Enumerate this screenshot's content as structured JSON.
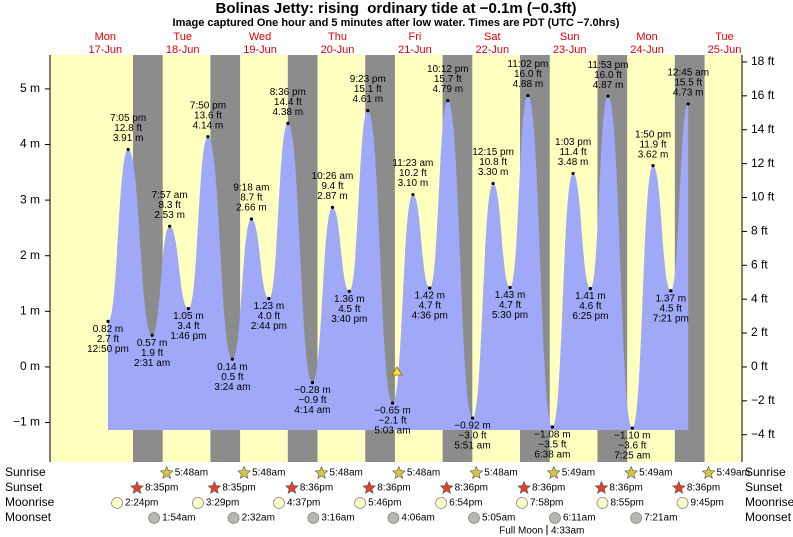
{
  "chart_data": {
    "type": "area",
    "title": "Bolinas Jetty: rising  ordinary tide at −0.1m (−0.3ft)",
    "subtitle": "Image captured One hour and 5 minutes after low water. Times are PDT (UTC −7.0hrs)",
    "categories": [
      "Mon",
      "Tue",
      "Wed",
      "Thu",
      "Fri",
      "Sat",
      "Sun",
      "Mon",
      "Tue"
    ],
    "dates": [
      "17-Jun",
      "18-Jun",
      "19-Jun",
      "20-Jun",
      "21-Jun",
      "22-Jun",
      "23-Jun",
      "24-Jun",
      "25-Jun"
    ],
    "date_color": "#e00000",
    "day_color": "#ffffc0",
    "night_color": "#8c8c8c",
    "x": [
      "12:50 pm",
      "7:05 pm",
      "2:31 am",
      "7:57 am",
      "1:46 pm",
      "7:50 pm",
      "3:24 am",
      "9:18 am",
      "2:44 pm",
      "8:36 pm",
      "4:14 am",
      "10:26 am",
      "3:40 pm",
      "9:23 pm",
      "5:03 am",
      "11:23 am",
      "4:36 pm",
      "10:12 pm",
      "5:51 am",
      "12:15 pm",
      "5:30 pm",
      "11:02 pm",
      "6:38 am",
      "1:03 pm",
      "6:25 pm",
      "11:53 pm",
      "7:25 am",
      "1:50 pm",
      "7:21 pm",
      "12:45 am"
    ],
    "series": [
      {
        "color": "#a0a8f8",
        "values": [
          0.82,
          3.91,
          0.57,
          2.53,
          1.05,
          4.14,
          0.14,
          2.66,
          1.23,
          4.38,
          -0.28,
          2.87,
          1.36,
          4.61,
          -0.65,
          3.1,
          1.42,
          4.79,
          -0.92,
          3.3,
          1.43,
          4.88,
          -1.08,
          3.48,
          1.41,
          4.87,
          -1.1,
          3.62,
          1.37,
          4.73
        ],
        "value_labels": [
          "0.82 m",
          "3.91 m",
          "0.57 m",
          "2.53 m",
          "1.05 m",
          "4.14 m",
          "0.14 m",
          "2.66 m",
          "1.23 m",
          "4.38 m",
          "−0.28 m",
          "2.87 m",
          "1.36 m",
          "4.61 m",
          "−0.65 m",
          "3.10 m",
          "1.42 m",
          "4.79 m",
          "−0.92 m",
          "3.30 m",
          "1.43 m",
          "4.88 m",
          "−1.08 m",
          "3.48 m",
          "1.41 m",
          "4.87 m",
          "−1.10 m",
          "3.62 m",
          "1.37 m",
          "4.73 m"
        ]
      },
      {
        "axis": "y2",
        "values": [
          2.7,
          12.8,
          1.9,
          8.3,
          3.4,
          13.6,
          0.5,
          8.7,
          4.0,
          14.4,
          -0.9,
          9.4,
          4.5,
          15.1,
          -2.1,
          10.2,
          4.7,
          15.7,
          -3.0,
          10.8,
          4.7,
          16.0,
          -3.5,
          11.4,
          4.6,
          16.0,
          -3.6,
          11.9,
          4.5,
          15.5
        ],
        "value_labels": [
          "2.7 ft",
          "12.8 ft",
          "1.9 ft",
          "8.3 ft",
          "3.4 ft",
          "13.6 ft",
          "0.5 ft",
          "8.7 ft",
          "4.0 ft",
          "14.4 ft",
          "−0.9 ft",
          "9.4 ft",
          "4.5 ft",
          "15.1 ft",
          "−2.1 ft",
          "10.2 ft",
          "4.7 ft",
          "15.7 ft",
          "−3.0 ft",
          "10.8 ft",
          "4.7 ft",
          "16.0 ft",
          "−3.5 ft",
          "11.4 ft",
          "4.6 ft",
          "16.0 ft",
          "−3.6 ft",
          "11.9 ft",
          "4.5 ft",
          "15.5 ft"
        ]
      }
    ],
    "ylim": [
      -1.71,
      5.61
    ],
    "yticks": [
      {
        "value": -1,
        "label": "−1 m"
      },
      {
        "value": 0,
        "label": "0 m"
      },
      {
        "value": 1,
        "label": "1 m"
      },
      {
        "value": 2,
        "label": "2 m"
      },
      {
        "value": 3,
        "label": "3 m"
      },
      {
        "value": 4,
        "label": "4 m"
      },
      {
        "value": 5,
        "label": "5 m"
      }
    ],
    "y2lim": [
      -5.61,
      18.41
    ],
    "y2ticks": [
      {
        "value": -4,
        "label": "−4 ft"
      },
      {
        "value": -2,
        "label": "−2 ft"
      },
      {
        "value": 0,
        "label": "0 ft"
      },
      {
        "value": 2,
        "label": "2 ft"
      },
      {
        "value": 4,
        "label": "4 ft"
      },
      {
        "value": 6,
        "label": "6 ft"
      },
      {
        "value": 8,
        "label": "8 ft"
      },
      {
        "value": 10,
        "label": "10 ft"
      },
      {
        "value": 12,
        "label": "12 ft"
      },
      {
        "value": 14,
        "label": "14 ft"
      },
      {
        "value": 16,
        "label": "16 ft"
      },
      {
        "value": 18,
        "label": "18 ft"
      }
    ],
    "events": [
      {
        "label": "Sunrise",
        "color": "#d8c640",
        "times": [
          null,
          "5:48am",
          "5:48am",
          "5:48am",
          "5:48am",
          "5:48am",
          "5:49am",
          "5:49am",
          "5:49am"
        ]
      },
      {
        "label": "Sunset",
        "color": "#e0402a",
        "times": [
          "8:35pm",
          "8:35pm",
          "8:36pm",
          "8:36pm",
          "8:36pm",
          "8:36pm",
          "8:36pm",
          "8:36pm",
          null
        ]
      },
      {
        "label": "Moonrise",
        "color": "#ffffc8",
        "times": [
          "2:24pm",
          "3:29pm",
          "4:37pm",
          "5:46pm",
          "6:54pm",
          "7:58pm",
          "8:55pm",
          "9:45pm",
          null
        ]
      },
      {
        "label": "Moonset",
        "color": "#b4b8b0",
        "times": [
          null,
          "1:54am",
          "2:32am",
          "3:16am",
          "4:06am",
          "5:05am",
          "6:11am",
          "7:21am",
          null
        ]
      }
    ],
    "moon_phase": {
      "label": "Full Moon",
      "time": "4:33am"
    }
  }
}
